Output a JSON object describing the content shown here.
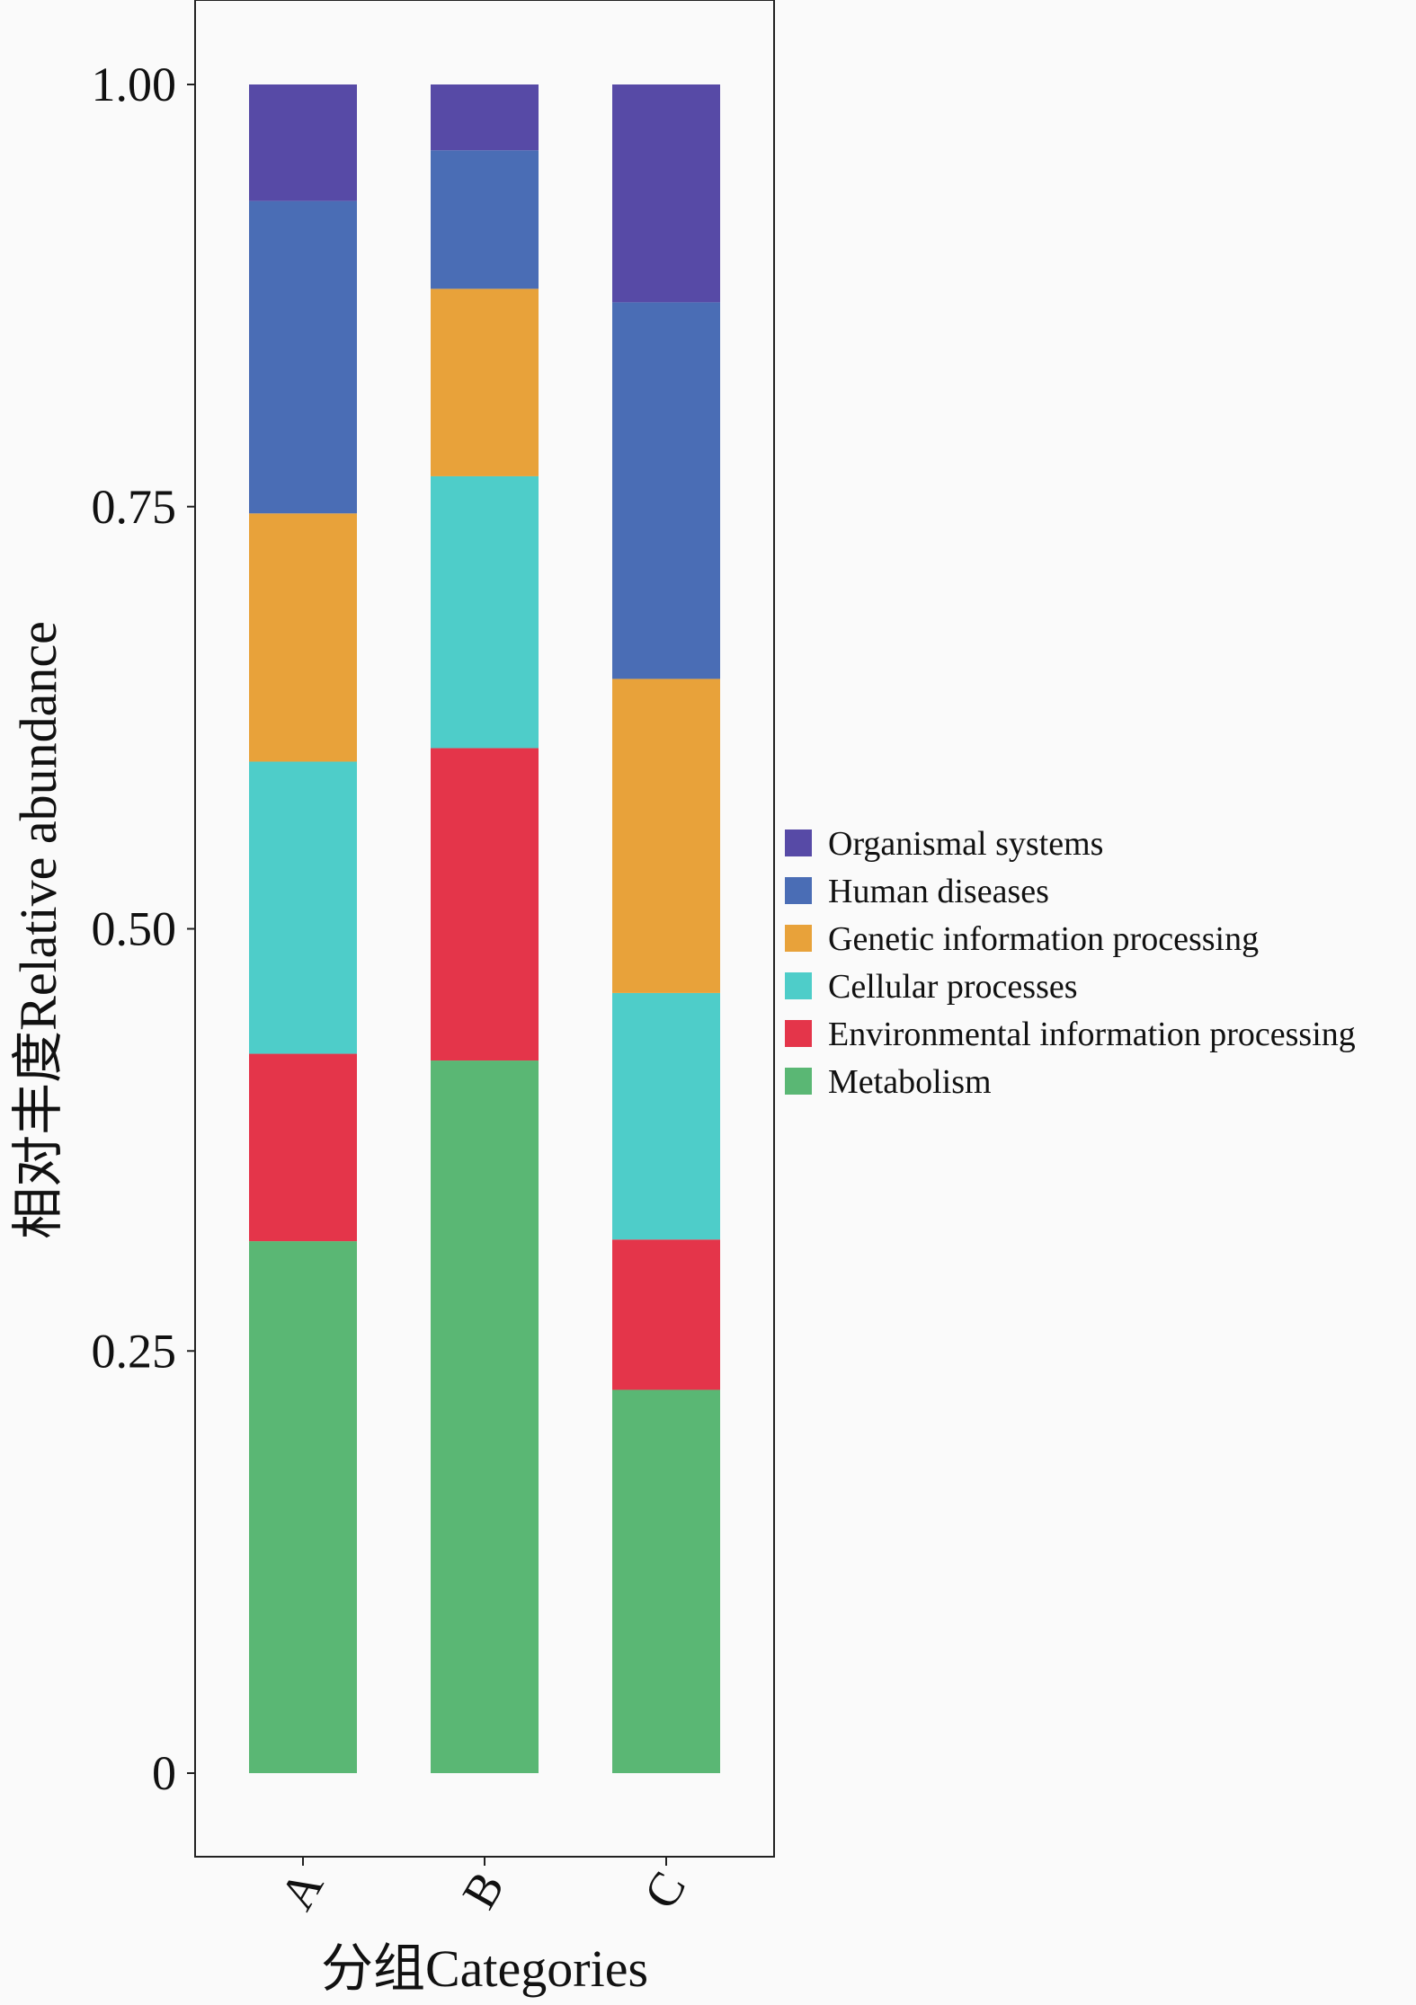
{
  "chart_data": {
    "type": "bar",
    "stacked": true,
    "categories": [
      "A",
      "B",
      "C"
    ],
    "series": [
      {
        "name": "Metabolism",
        "color": "#5ab774",
        "values": [
          0.315,
          0.422,
          0.227
        ]
      },
      {
        "name": "Environmental information processing",
        "color": "#e4354a",
        "values": [
          0.111,
          0.185,
          0.089
        ]
      },
      {
        "name": "Cellular processes",
        "color": "#4ecdc9",
        "values": [
          0.173,
          0.161,
          0.146
        ]
      },
      {
        "name": "Genetic information processing",
        "color": "#e8a23a",
        "values": [
          0.147,
          0.111,
          0.186
        ]
      },
      {
        "name": "Human diseases",
        "color": "#4a6db5",
        "values": [
          0.185,
          0.082,
          0.223
        ]
      },
      {
        "name": "Organismal systems",
        "color": "#574aa6",
        "values": [
          0.069,
          0.039,
          0.129
        ]
      }
    ],
    "legend_order": [
      "Organismal systems",
      "Human diseases",
      "Genetic information processing",
      "Cellular processes",
      "Environmental information processing",
      "Metabolism"
    ],
    "yticks": [
      "0",
      "0.25",
      "0.50",
      "0.75",
      "1.00"
    ],
    "ytick_values": [
      0,
      0.25,
      0.5,
      0.75,
      1.0
    ],
    "ylim": [
      -0.05,
      1.05
    ],
    "xlabel": "分组Categories",
    "ylabel": "相对丰度Relative abundance",
    "legend_position": "right",
    "grid": false
  }
}
